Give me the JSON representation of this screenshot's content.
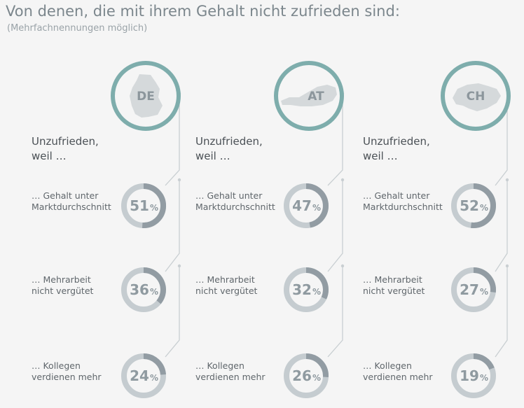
{
  "title": "Von denen, die mit ihrem Gehalt nicht zufrieden sind:",
  "subtitle": "(Mehrfachnennungen möglich)",
  "chart_data": {
    "type": "donut",
    "title": "Von denen, die mit ihrem Gehalt nicht zufrieden sind:",
    "subtitle": "(Mehrfachnennungen möglich)",
    "unit": "%",
    "heading_line1": "Unzufrieden,",
    "heading_line2": "weil …",
    "reasons": [
      {
        "line1": "… Gehalt unter",
        "line2": "Marktdurchschnitt"
      },
      {
        "line1": "… Mehrarbeit",
        "line2": "nicht vergütet"
      },
      {
        "line1": "… Kollegen",
        "line2": "verdienen mehr"
      }
    ],
    "series": [
      {
        "name": "DE",
        "values": [
          51,
          36,
          24
        ]
      },
      {
        "name": "AT",
        "values": [
          47,
          32,
          26
        ]
      },
      {
        "name": "CH",
        "values": [
          52,
          27,
          19
        ]
      }
    ]
  },
  "colors": {
    "ring": "#7eadac",
    "map": "#d5d9db",
    "track": "#c5ccd0",
    "fill": "#929ca3",
    "line": "#c9cfd2",
    "text": "#5f666b"
  }
}
